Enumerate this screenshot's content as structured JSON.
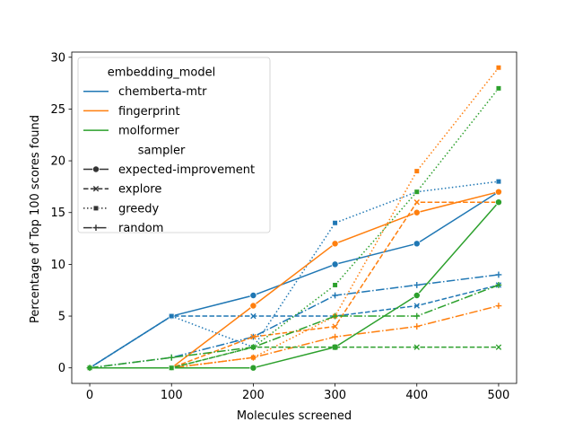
{
  "chart_data": {
    "type": "line",
    "title": "",
    "xlabel": "Molecules screened",
    "ylabel": "Percentage of Top 100 scores found",
    "xlim": [
      -22,
      522
    ],
    "ylim": [
      -1.5,
      30.5
    ],
    "xticks": [
      0,
      100,
      200,
      300,
      400,
      500
    ],
    "yticks": [
      0,
      5,
      10,
      15,
      20,
      25,
      30
    ],
    "grid": false,
    "legend_placement": "top-left",
    "legend": {
      "hue_title": "embedding_model",
      "style_title": "sampler",
      "hue_entries": [
        {
          "name": "chemberta-mtr",
          "color": "#1f77b4"
        },
        {
          "name": "fingerprint",
          "color": "#ff7f0e"
        },
        {
          "name": "molformer",
          "color": "#2ca02c"
        }
      ],
      "style_entries": [
        {
          "name": "expected-improvement",
          "dash": "solid",
          "marker": "circle"
        },
        {
          "name": "explore",
          "dash": "dashed",
          "marker": "x"
        },
        {
          "name": "greedy",
          "dash": "dotted",
          "marker": "square"
        },
        {
          "name": "random",
          "dash": "dashdot",
          "marker": "plus"
        }
      ]
    },
    "x": [
      0,
      100,
      200,
      300,
      400,
      500
    ],
    "series": [
      {
        "model": "chemberta-mtr",
        "sampler": "expected-improvement",
        "color": "#1f77b4",
        "values": [
          0,
          5,
          7,
          10,
          12,
          17
        ]
      },
      {
        "model": "chemberta-mtr",
        "sampler": "explore",
        "color": "#1f77b4",
        "values": [
          0,
          5,
          5,
          5,
          6,
          8
        ]
      },
      {
        "model": "chemberta-mtr",
        "sampler": "greedy",
        "color": "#1f77b4",
        "values": [
          0,
          5,
          2,
          14,
          17,
          18
        ]
      },
      {
        "model": "chemberta-mtr",
        "sampler": "random",
        "color": "#1f77b4",
        "values": [
          0,
          1,
          3,
          7,
          8,
          9
        ]
      },
      {
        "model": "fingerprint",
        "sampler": "expected-improvement",
        "color": "#ff7f0e",
        "values": [
          0,
          0,
          6,
          12,
          15,
          17
        ]
      },
      {
        "model": "fingerprint",
        "sampler": "explore",
        "color": "#ff7f0e",
        "values": [
          0,
          0,
          3,
          4,
          16,
          16
        ]
      },
      {
        "model": "fingerprint",
        "sampler": "greedy",
        "color": "#ff7f0e",
        "values": [
          0,
          0,
          1,
          5,
          19,
          29
        ]
      },
      {
        "model": "fingerprint",
        "sampler": "random",
        "color": "#ff7f0e",
        "values": [
          0,
          0,
          1,
          3,
          4,
          6
        ]
      },
      {
        "model": "molformer",
        "sampler": "expected-improvement",
        "color": "#2ca02c",
        "values": [
          0,
          0,
          0,
          2,
          7,
          16
        ]
      },
      {
        "model": "molformer",
        "sampler": "explore",
        "color": "#2ca02c",
        "values": [
          0,
          0,
          2,
          2,
          2,
          2
        ]
      },
      {
        "model": "molformer",
        "sampler": "greedy",
        "color": "#2ca02c",
        "values": [
          0,
          0,
          2,
          8,
          17,
          27
        ]
      },
      {
        "model": "molformer",
        "sampler": "random",
        "color": "#2ca02c",
        "values": [
          0,
          1,
          2,
          5,
          5,
          8
        ]
      }
    ]
  }
}
